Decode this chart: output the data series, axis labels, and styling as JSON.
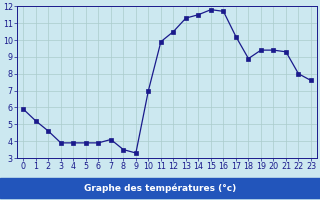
{
  "x": [
    0,
    1,
    2,
    3,
    4,
    5,
    6,
    7,
    8,
    9,
    10,
    11,
    12,
    13,
    14,
    15,
    16,
    17,
    18,
    19,
    20,
    21,
    22,
    23
  ],
  "y": [
    5.9,
    5.2,
    4.6,
    3.9,
    3.9,
    3.9,
    3.9,
    4.1,
    3.5,
    3.3,
    7.0,
    9.9,
    10.5,
    11.3,
    11.5,
    11.8,
    11.7,
    10.2,
    8.9,
    9.4,
    9.4,
    9.3,
    8.0,
    7.6
  ],
  "xlim": [
    -0.5,
    23.5
  ],
  "ylim": [
    3,
    12
  ],
  "yticks": [
    3,
    4,
    5,
    6,
    7,
    8,
    9,
    10,
    11,
    12
  ],
  "xticks": [
    0,
    1,
    2,
    3,
    4,
    5,
    6,
    7,
    8,
    9,
    10,
    11,
    12,
    13,
    14,
    15,
    16,
    17,
    18,
    19,
    20,
    21,
    22,
    23
  ],
  "xlabel": "Graphe des températures (°c)",
  "line_color": "#1a1a8c",
  "marker": "s",
  "marker_size": 2.2,
  "bg_color": "#cce8f0",
  "grid_color": "#aacccc",
  "tick_fontsize": 5.8,
  "xlabel_fontsize": 6.5,
  "xlabel_text_color": "#ffffff",
  "xlabel_bg_color": "#2255bb"
}
